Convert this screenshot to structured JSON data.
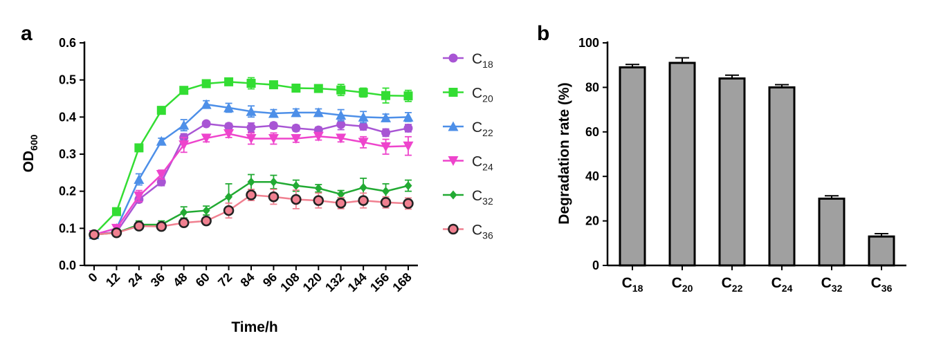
{
  "chart_data": [
    {
      "panel": "a",
      "type": "line",
      "title": "",
      "xlabel": "Time/h",
      "ylabel_main": "OD",
      "ylabel_sub": "600",
      "x": [
        0,
        12,
        24,
        36,
        48,
        60,
        72,
        84,
        96,
        108,
        120,
        132,
        144,
        156,
        168
      ],
      "x_tick_labels": [
        "0",
        "12",
        "24",
        "36",
        "48",
        "60",
        "72",
        "84",
        "96",
        "108",
        "120",
        "132",
        "144",
        "156",
        "168"
      ],
      "ylim": [
        0,
        0.6
      ],
      "y_ticks": [
        0.0,
        0.1,
        0.2,
        0.3,
        0.4,
        0.5,
        0.6
      ],
      "y_tick_labels": [
        "0.0",
        "0.1",
        "0.2",
        "0.3",
        "0.4",
        "0.5",
        "0.6"
      ],
      "legend_position": "right",
      "series": [
        {
          "name_main": "C",
          "name_sub": "18",
          "color": "#a855d4",
          "marker": "circle",
          "values": [
            0.083,
            0.09,
            0.178,
            0.225,
            0.345,
            0.382,
            0.375,
            0.372,
            0.377,
            0.37,
            0.365,
            0.38,
            0.375,
            0.358,
            0.37
          ],
          "errors": [
            0.004,
            0.005,
            0.008,
            0.01,
            0.01,
            0.006,
            0.008,
            0.012,
            0.008,
            0.008,
            0.008,
            0.014,
            0.01,
            0.01,
            0.01
          ]
        },
        {
          "name_main": "C",
          "name_sub": "20",
          "color": "#33dd33",
          "marker": "square",
          "values": [
            0.083,
            0.145,
            0.317,
            0.418,
            0.472,
            0.49,
            0.495,
            0.491,
            0.487,
            0.478,
            0.477,
            0.473,
            0.466,
            0.458,
            0.457
          ],
          "errors": [
            0.004,
            0.006,
            0.01,
            0.01,
            0.008,
            0.006,
            0.008,
            0.015,
            0.008,
            0.008,
            0.01,
            0.015,
            0.012,
            0.02,
            0.015
          ]
        },
        {
          "name_main": "C",
          "name_sub": "22",
          "color": "#4d8fe8",
          "marker": "triangle",
          "values": [
            0.083,
            0.1,
            0.232,
            0.335,
            0.378,
            0.434,
            0.425,
            0.415,
            0.41,
            0.412,
            0.412,
            0.405,
            0.4,
            0.398,
            0.4
          ],
          "errors": [
            0.004,
            0.008,
            0.015,
            0.008,
            0.015,
            0.01,
            0.012,
            0.015,
            0.01,
            0.01,
            0.01,
            0.015,
            0.015,
            0.01,
            0.012
          ]
        },
        {
          "name_main": "C",
          "name_sub": "24",
          "color": "#ee44cc",
          "marker": "triangle-down",
          "values": [
            0.083,
            0.1,
            0.187,
            0.245,
            0.325,
            0.343,
            0.355,
            0.342,
            0.342,
            0.342,
            0.348,
            0.343,
            0.332,
            0.32,
            0.322
          ],
          "errors": [
            0.004,
            0.008,
            0.015,
            0.012,
            0.02,
            0.01,
            0.01,
            0.015,
            0.015,
            0.01,
            0.01,
            0.01,
            0.015,
            0.02,
            0.025
          ]
        },
        {
          "name_main": "C",
          "name_sub": "32",
          "color": "#22aa33",
          "marker": "diamond",
          "values": [
            0.083,
            0.088,
            0.11,
            0.11,
            0.143,
            0.148,
            0.185,
            0.225,
            0.225,
            0.215,
            0.208,
            0.192,
            0.21,
            0.2,
            0.215
          ],
          "errors": [
            0.004,
            0.005,
            0.01,
            0.01,
            0.015,
            0.012,
            0.035,
            0.02,
            0.018,
            0.015,
            0.01,
            0.01,
            0.025,
            0.02,
            0.015
          ]
        },
        {
          "name_main": "C",
          "name_sub": "36",
          "color": "#f08090",
          "marker": "circle-outline",
          "values": [
            0.083,
            0.088,
            0.106,
            0.105,
            0.115,
            0.12,
            0.148,
            0.19,
            0.185,
            0.178,
            0.175,
            0.168,
            0.175,
            0.17,
            0.167
          ],
          "errors": [
            0.004,
            0.005,
            0.008,
            0.008,
            0.01,
            0.01,
            0.02,
            0.015,
            0.02,
            0.025,
            0.02,
            0.015,
            0.02,
            0.015,
            0.015
          ]
        }
      ]
    },
    {
      "panel": "b",
      "type": "bar",
      "title": "",
      "xlabel": "",
      "ylabel": "Degradation rate (%)",
      "ylim": [
        0,
        100
      ],
      "y_ticks": [
        0,
        20,
        40,
        60,
        80,
        100
      ],
      "y_tick_labels": [
        "0",
        "20",
        "40",
        "60",
        "80",
        "100"
      ],
      "bar_color": "#a0a0a0",
      "categories": [
        {
          "main": "C",
          "sub": "18"
        },
        {
          "main": "C",
          "sub": "20"
        },
        {
          "main": "C",
          "sub": "22"
        },
        {
          "main": "C",
          "sub": "24"
        },
        {
          "main": "C",
          "sub": "32"
        },
        {
          "main": "C",
          "sub": "36"
        }
      ],
      "values": [
        89,
        91,
        84,
        80,
        30,
        13
      ],
      "errors": [
        1.3,
        2.3,
        1.5,
        1.2,
        1.3,
        1.3
      ]
    }
  ]
}
